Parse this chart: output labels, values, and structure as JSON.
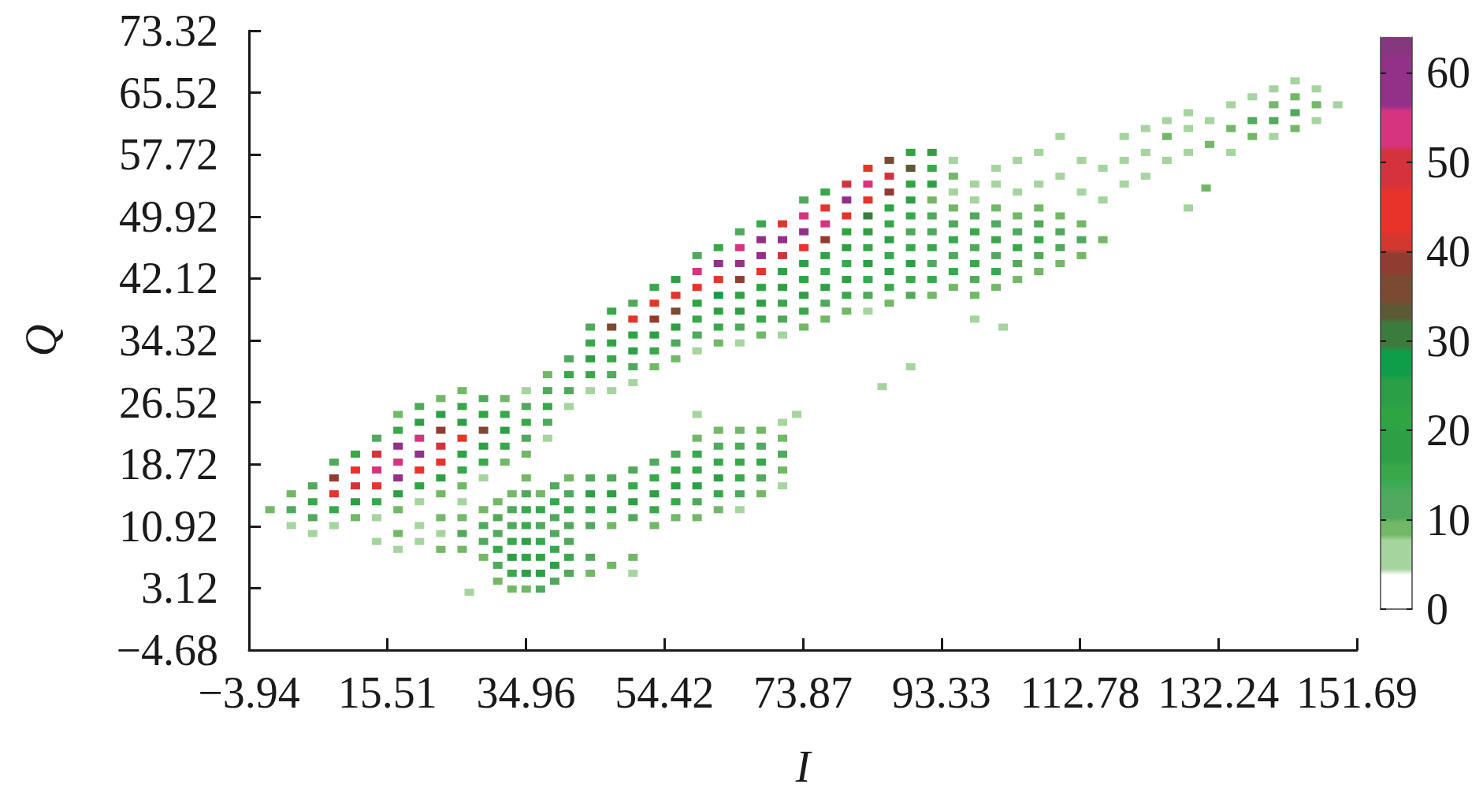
{
  "chart_data": {
    "type": "scatter",
    "xlabel": "I",
    "ylabel": "Q",
    "marker": "square",
    "x": [
      -1,
      2,
      2,
      2,
      5,
      5,
      5,
      5,
      8,
      8,
      8,
      8,
      8,
      11,
      11,
      11,
      11,
      11,
      14,
      14,
      14,
      14,
      14,
      14,
      17,
      17,
      17,
      17,
      17,
      17,
      17,
      20,
      20,
      20,
      20,
      20,
      20,
      20,
      23,
      23,
      23,
      23,
      23,
      23,
      23,
      26,
      26,
      26,
      26,
      26,
      26,
      26,
      29,
      29,
      29,
      29,
      29,
      29,
      32,
      32,
      32,
      32,
      32,
      35,
      35,
      35,
      35,
      35,
      38,
      38,
      38,
      38,
      38,
      41,
      41,
      41,
      41,
      44,
      44,
      44,
      44,
      44,
      47,
      47,
      47,
      47,
      47,
      47,
      50,
      50,
      50,
      50,
      50,
      50,
      53,
      53,
      53,
      53,
      53,
      53,
      56,
      56,
      56,
      56,
      56,
      56,
      59,
      59,
      59,
      59,
      59,
      59,
      59,
      62,
      62,
      62,
      62,
      62,
      62,
      62,
      65,
      65,
      65,
      65,
      65,
      65,
      65,
      65,
      68,
      68,
      68,
      68,
      68,
      68,
      68,
      68,
      71,
      71,
      71,
      71,
      71,
      71,
      71,
      71,
      74,
      74,
      74,
      74,
      74,
      74,
      74,
      74,
      74,
      77,
      77,
      77,
      77,
      77,
      77,
      77,
      77,
      77,
      80,
      80,
      80,
      80,
      80,
      80,
      80,
      80,
      80,
      83,
      83,
      83,
      83,
      83,
      83,
      83,
      83,
      83,
      83,
      86,
      86,
      86,
      86,
      86,
      86,
      86,
      86,
      86,
      86,
      89,
      89,
      89,
      89,
      89,
      89,
      89,
      89,
      89,
      89,
      92,
      92,
      92,
      92,
      92,
      92,
      92,
      92,
      92,
      92,
      95,
      95,
      95,
      95,
      95,
      95,
      95,
      95,
      95,
      98,
      98,
      98,
      98,
      98,
      98,
      98,
      98,
      101,
      101,
      101,
      101,
      101,
      101,
      101,
      101,
      104,
      104,
      104,
      104,
      104,
      104,
      104,
      107,
      107,
      107,
      107,
      107,
      107,
      107,
      110,
      110,
      110,
      110,
      110,
      110,
      113,
      113,
      113,
      113,
      113,
      116,
      116,
      116,
      119,
      119,
      119,
      122,
      122,
      122,
      125,
      125,
      125,
      128,
      128,
      128,
      131,
      131,
      134,
      134,
      134,
      137,
      137,
      137,
      140,
      140,
      140,
      140,
      143,
      143,
      143,
      143,
      146,
      146,
      146,
      149,
      85,
      89,
      98,
      102,
      128,
      130.5,
      59,
      73,
      14,
      17,
      17,
      20,
      20,
      23,
      23,
      23,
      26,
      26,
      26,
      26,
      27,
      29,
      29,
      29,
      29,
      31,
      31,
      31,
      31,
      31,
      31,
      33,
      33,
      33,
      33,
      33,
      33,
      33,
      35,
      35,
      35,
      35,
      35,
      35,
      35,
      35,
      37,
      37,
      37,
      37,
      37,
      37,
      37,
      39,
      39,
      39,
      39,
      39,
      39,
      39,
      41,
      41,
      41,
      41,
      41,
      41,
      41,
      44,
      44,
      44,
      44,
      44,
      44,
      47,
      47,
      47,
      47,
      47,
      50,
      50,
      50,
      50,
      50,
      50,
      53,
      53,
      53,
      53,
      53,
      56,
      56,
      56,
      56,
      56,
      59,
      59,
      59,
      59,
      59,
      59,
      62,
      62,
      62,
      62,
      62,
      62,
      65,
      65,
      65,
      65,
      65,
      65,
      68,
      68,
      68,
      68,
      68,
      71,
      71,
      71,
      71,
      71
    ],
    "values": [
      13,
      11,
      13,
      15,
      10,
      12,
      14,
      16,
      11,
      13,
      15,
      17,
      19,
      12,
      14,
      16,
      18,
      20,
      12,
      14,
      16,
      18,
      20,
      22,
      13,
      15,
      17,
      19,
      21,
      23,
      25,
      14,
      16,
      18,
      20,
      22,
      24,
      26,
      15,
      17,
      19,
      21,
      23,
      25,
      27,
      16,
      18,
      20,
      22,
      24,
      26,
      28,
      17,
      19,
      21,
      23,
      25,
      27,
      19,
      21,
      23,
      25,
      27,
      20,
      22,
      24,
      26,
      28,
      22,
      24,
      26,
      28,
      30,
      26,
      28,
      30,
      32,
      28,
      30,
      32,
      34,
      36,
      28,
      30,
      32,
      34,
      36,
      38,
      29,
      31,
      33,
      35,
      37,
      39,
      31,
      33,
      35,
      37,
      39,
      41,
      32,
      34,
      36,
      38,
      40,
      42,
      33,
      35,
      37,
      39,
      41,
      43,
      45,
      34,
      36,
      38,
      40,
      42,
      44,
      46,
      34,
      36,
      38,
      40,
      42,
      44,
      46,
      48,
      35,
      37,
      39,
      41,
      43,
      45,
      47,
      49,
      35,
      37,
      39,
      41,
      43,
      45,
      47,
      49,
      36,
      38,
      40,
      42,
      44,
      46,
      48,
      50,
      52,
      37,
      39,
      41,
      43,
      45,
      47,
      49,
      51,
      53,
      38,
      40,
      42,
      44,
      46,
      48,
      50,
      52,
      54,
      38,
      40,
      42,
      44,
      46,
      48,
      50,
      52,
      54,
      56,
      39,
      41,
      43,
      45,
      47,
      49,
      51,
      53,
      55,
      57,
      40,
      42,
      44,
      46,
      48,
      50,
      52,
      54,
      56,
      58,
      40,
      42,
      44,
      46,
      48,
      50,
      52,
      54,
      56,
      58,
      41,
      43,
      45,
      47,
      49,
      51,
      53,
      55,
      57,
      40,
      42,
      44,
      46,
      48,
      50,
      52,
      54,
      41,
      43,
      45,
      47,
      49,
      51,
      54,
      56,
      42,
      44,
      46,
      48,
      50,
      53,
      57,
      43,
      45,
      47,
      49,
      51,
      54,
      58,
      44,
      46,
      48,
      50,
      55,
      60,
      45,
      47,
      49,
      53,
      57,
      47,
      52,
      56,
      54,
      57,
      60,
      55,
      58,
      61,
      57,
      60,
      62,
      58,
      61,
      63,
      59,
      62,
      58,
      61,
      64,
      60,
      62,
      65,
      60,
      62,
      64,
      66,
      61,
      63,
      65,
      67,
      62,
      64,
      66,
      64,
      28.5,
      31,
      37,
      36,
      51,
      53.5,
      25,
      25,
      9,
      8,
      10,
      9,
      11,
      8,
      10,
      12,
      8,
      10,
      12,
      14,
      2.6,
      7,
      9,
      11,
      13,
      4,
      6,
      8,
      10,
      12,
      14,
      3,
      5,
      7,
      9,
      11,
      13,
      15,
      3,
      5,
      7,
      9,
      11,
      13,
      15,
      17,
      3,
      5,
      7,
      9,
      11,
      13,
      15,
      4,
      6,
      8,
      10,
      12,
      14,
      16,
      5,
      7,
      9,
      11,
      13,
      15,
      17,
      5,
      7,
      11,
      13,
      15,
      17,
      6,
      11,
      13,
      15,
      17,
      5,
      7,
      12,
      14,
      16,
      18,
      11,
      13,
      15,
      17,
      19,
      12,
      14,
      16,
      18,
      20,
      12,
      14,
      16,
      18,
      20,
      22,
      13,
      15,
      17,
      19,
      21,
      23,
      13,
      15,
      17,
      19,
      21,
      23,
      15,
      17,
      19,
      21,
      23,
      16,
      18,
      20,
      22,
      24
    ],
    "cvalues": [
      9,
      6,
      12,
      9,
      6,
      12,
      15,
      12,
      6,
      15,
      45,
      39,
      12,
      9,
      18,
      50,
      45,
      15,
      6,
      15,
      45,
      54,
      50,
      12,
      9,
      18,
      59,
      54,
      59,
      15,
      9,
      6,
      21,
      45,
      59,
      54,
      18,
      12,
      9,
      18,
      45,
      50,
      39,
      18,
      9,
      9,
      15,
      21,
      45,
      18,
      15,
      9,
      6,
      15,
      18,
      36,
      21,
      12,
      9,
      15,
      18,
      15,
      9,
      9,
      12,
      15,
      12,
      6,
      6,
      12,
      15,
      12,
      9,
      6,
      12,
      15,
      12,
      6,
      15,
      18,
      15,
      12,
      6,
      12,
      15,
      21,
      36,
      15,
      6,
      12,
      18,
      21,
      45,
      12,
      9,
      15,
      18,
      39,
      45,
      15,
      9,
      12,
      18,
      36,
      45,
      18,
      6,
      12,
      15,
      21,
      45,
      54,
      12,
      9,
      15,
      18,
      27,
      45,
      59,
      15,
      6,
      12,
      18,
      21,
      39,
      59,
      54,
      12,
      9,
      15,
      18,
      21,
      45,
      59,
      59,
      15,
      6,
      12,
      15,
      18,
      21,
      50,
      59,
      45,
      9,
      15,
      18,
      21,
      18,
      45,
      59,
      54,
      12,
      9,
      12,
      18,
      15,
      21,
      39,
      54,
      45,
      15,
      9,
      15,
      18,
      15,
      18,
      21,
      45,
      59,
      50,
      6,
      12,
      15,
      18,
      15,
      18,
      30,
      45,
      54,
      45,
      9,
      15,
      18,
      15,
      18,
      15,
      21,
      39,
      50,
      36,
      12,
      15,
      18,
      15,
      12,
      15,
      18,
      21,
      33,
      21,
      9,
      15,
      12,
      15,
      12,
      12,
      9,
      18,
      15,
      18,
      9,
      15,
      12,
      15,
      12,
      9,
      6,
      9,
      6,
      9,
      12,
      15,
      12,
      15,
      12,
      6,
      6,
      9,
      15,
      12,
      15,
      12,
      9,
      6,
      6,
      9,
      12,
      15,
      12,
      9,
      6,
      6,
      9,
      12,
      15,
      12,
      9,
      6,
      6,
      9,
      12,
      12,
      9,
      6,
      6,
      9,
      12,
      9,
      6,
      6,
      9,
      6,
      6,
      6,
      6,
      6,
      6,
      6,
      6,
      6,
      9,
      6,
      6,
      6,
      6,
      9,
      6,
      6,
      9,
      6,
      9,
      12,
      6,
      6,
      12,
      9,
      6,
      9,
      12,
      9,
      6,
      6,
      9,
      6,
      6,
      6,
      6,
      6,
      6,
      6,
      9,
      6,
      6,
      6,
      6,
      9,
      6,
      6,
      9,
      6,
      9,
      9,
      12,
      9,
      6,
      6,
      9,
      12,
      12,
      9,
      9,
      12,
      15,
      12,
      12,
      9,
      9,
      15,
      18,
      15,
      12,
      12,
      9,
      9,
      18,
      21,
      18,
      15,
      15,
      12,
      9,
      12,
      18,
      21,
      15,
      12,
      15,
      9,
      12,
      18,
      15,
      12,
      12,
      15,
      12,
      12,
      15,
      12,
      12,
      15,
      12,
      9,
      9,
      12,
      12,
      15,
      18,
      12,
      9,
      9,
      15,
      18,
      12,
      6,
      9,
      12,
      18,
      15,
      12,
      9,
      15,
      18,
      15,
      12,
      9,
      15,
      18,
      15,
      12,
      9,
      12,
      18,
      15,
      15,
      9,
      9,
      15,
      18,
      15,
      12,
      9,
      6,
      12,
      15,
      15,
      12,
      9,
      9,
      12,
      15,
      12,
      9,
      6,
      9,
      12,
      9,
      6
    ],
    "xlim": [
      -3.94,
      151.69
    ],
    "ylim": [
      -4.68,
      73.32
    ],
    "xticks": [
      {
        "value": -3.94,
        "label": "−3.94"
      },
      15.51,
      34.96,
      54.42,
      73.87,
      93.33,
      112.78,
      132.24,
      151.69
    ],
    "yticks": [
      {
        "value": -4.68,
        "label": "−4.68"
      },
      3.12,
      10.92,
      18.72,
      26.52,
      34.32,
      42.12,
      49.92,
      57.72,
      65.52,
      73.32
    ],
    "clim": [
      0,
      64
    ],
    "cticks": [
      0,
      10,
      20,
      30,
      40,
      50,
      60
    ]
  }
}
